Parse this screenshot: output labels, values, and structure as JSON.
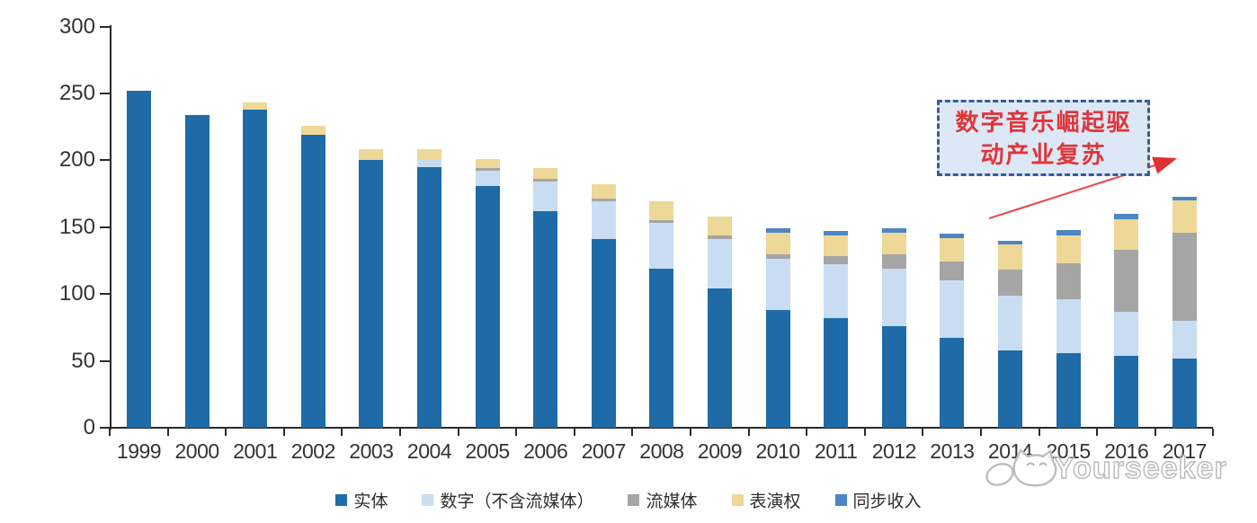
{
  "chart_data": {
    "type": "bar",
    "stacked": true,
    "title": "",
    "xlabel": "",
    "ylabel": "",
    "grid": false,
    "legend_position": "bottom",
    "categories": [
      "1999",
      "2000",
      "2001",
      "2002",
      "2003",
      "2004",
      "2005",
      "2006",
      "2007",
      "2008",
      "2009",
      "2010",
      "2011",
      "2012",
      "2013",
      "2014",
      "2015",
      "2016",
      "2017"
    ],
    "series": [
      {
        "name": "实体",
        "color": "#1e6ba8",
        "values": [
          252,
          234,
          238,
          219,
          200,
          195,
          181,
          162,
          141,
          119,
          104,
          88,
          82,
          76,
          67,
          58,
          56,
          54,
          52
        ]
      },
      {
        "name": "数字（不含流媒体）",
        "color": "#c9ddf2",
        "values": [
          0,
          0,
          0,
          0,
          0,
          5,
          11,
          22,
          28,
          34,
          37,
          38,
          40,
          43,
          43,
          41,
          40,
          33,
          28
        ]
      },
      {
        "name": "流媒体",
        "color": "#a5a5a5",
        "values": [
          0,
          0,
          0,
          0,
          0,
          0,
          2,
          2,
          2,
          2,
          3,
          4,
          6,
          11,
          14,
          19,
          27,
          46,
          66
        ]
      },
      {
        "name": "表演权",
        "color": "#eed898",
        "values": [
          0,
          0,
          5,
          7,
          8,
          8,
          7,
          8,
          11,
          14,
          14,
          16,
          16,
          16,
          18,
          19,
          21,
          23,
          24
        ]
      },
      {
        "name": "同步收入",
        "color": "#4e86c4",
        "values": [
          0,
          0,
          0,
          0,
          0,
          0,
          0,
          0,
          0,
          0,
          0,
          3,
          3,
          3,
          3,
          3,
          4,
          4,
          3
        ]
      }
    ],
    "y_axis": {
      "min": 0,
      "max": 300,
      "tick_step": 50,
      "ticks": [
        "300",
        "250",
        "200",
        "150",
        "100",
        "50",
        "0"
      ]
    }
  },
  "annotation": {
    "line1": "数字音乐崛起驱",
    "line2": "动产业复苏",
    "text_color": "#e03539",
    "arrow_color": "#ee4e4e",
    "box_fill": "#dce8f6",
    "border_color": "#3a5b9e"
  },
  "watermark": {
    "text": "Yourseeker"
  }
}
